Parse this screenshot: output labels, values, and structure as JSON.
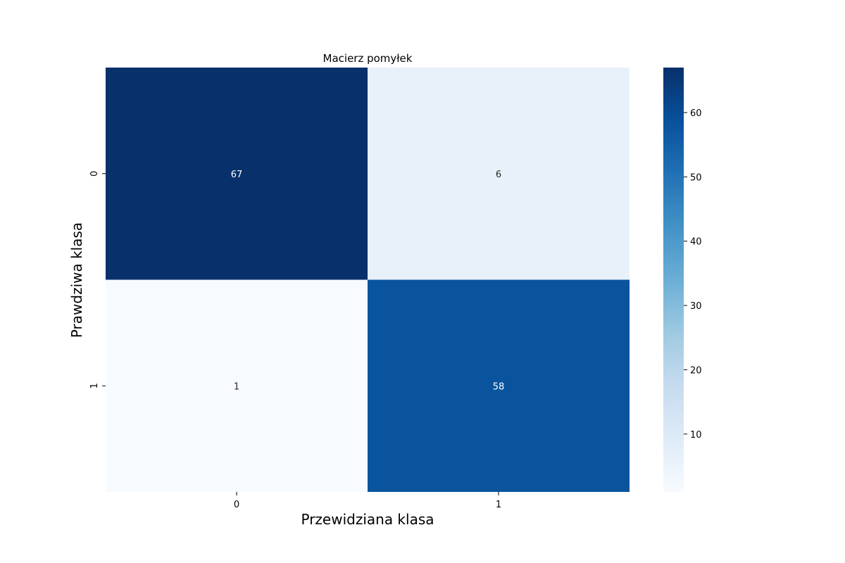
{
  "chart_data": {
    "type": "heatmap",
    "title": "Macierz pomyłek",
    "xlabel": "Przewidziana klasa",
    "ylabel": "Prawdziwa klasa",
    "x_categories": [
      "0",
      "1"
    ],
    "y_categories": [
      "0",
      "1"
    ],
    "values": [
      [
        67,
        6
      ],
      [
        1,
        58
      ]
    ],
    "colormap": "Blues",
    "color_range": [
      1,
      67
    ],
    "colorbar_ticks": [
      10,
      20,
      30,
      40,
      50,
      60
    ]
  }
}
